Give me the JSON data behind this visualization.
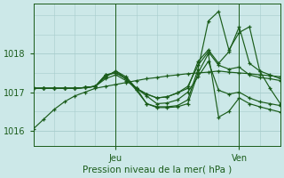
{
  "xlabel": "Pression niveau de la mer( hPa )",
  "xlim": [
    0,
    96
  ],
  "ylim": [
    1015.6,
    1019.3
  ],
  "yticks": [
    1016,
    1017,
    1018
  ],
  "xtick_positions": [
    32,
    80
  ],
  "xtick_labels": [
    "Jeu",
    "Ven"
  ],
  "bg_color": "#cce8e8",
  "line_color": "#1a5c1a",
  "grid_color": "#a8cccc",
  "figsize": [
    3.2,
    2.0
  ],
  "dpi": 100,
  "lines": [
    {
      "x": [
        0,
        4,
        8,
        12,
        16,
        20,
        24,
        28,
        32,
        36,
        40,
        44,
        48,
        52,
        56,
        60,
        64,
        68,
        72,
        76,
        80,
        84,
        88,
        92,
        96
      ],
      "y": [
        1016.05,
        1016.3,
        1016.55,
        1016.75,
        1016.9,
        1017.0,
        1017.1,
        1017.15,
        1017.2,
        1017.25,
        1017.3,
        1017.35,
        1017.38,
        1017.42,
        1017.45,
        1017.48,
        1017.5,
        1017.52,
        1017.55,
        1017.52,
        1017.5,
        1017.48,
        1017.45,
        1017.43,
        1017.4
      ]
    },
    {
      "x": [
        0,
        4,
        8,
        12,
        16,
        20,
        24,
        28,
        32,
        36,
        40,
        44,
        48,
        52,
        56,
        60,
        64,
        68,
        72,
        76,
        80,
        84,
        88,
        92,
        96
      ],
      "y": [
        1017.1,
        1017.1,
        1017.1,
        1017.1,
        1017.1,
        1017.12,
        1017.15,
        1017.35,
        1017.45,
        1017.3,
        1017.1,
        1016.9,
        1016.7,
        1016.72,
        1016.8,
        1017.0,
        1017.4,
        1017.8,
        1017.05,
        1016.95,
        1017.0,
        1016.85,
        1016.75,
        1016.7,
        1016.65
      ]
    },
    {
      "x": [
        0,
        4,
        8,
        12,
        16,
        20,
        24,
        28,
        32,
        36,
        40,
        44,
        48,
        52,
        56,
        60,
        64,
        68,
        72,
        76,
        80,
        84,
        88,
        92,
        96
      ],
      "y": [
        1017.1,
        1017.1,
        1017.1,
        1017.1,
        1017.1,
        1017.12,
        1017.15,
        1017.4,
        1017.55,
        1017.4,
        1017.1,
        1016.7,
        1016.62,
        1016.62,
        1016.65,
        1016.8,
        1017.6,
        1018.85,
        1019.1,
        1018.1,
        1018.55,
        1018.7,
        1017.55,
        1017.1,
        1016.7
      ]
    },
    {
      "x": [
        0,
        4,
        8,
        12,
        16,
        20,
        24,
        28,
        32,
        36,
        40,
        44,
        48,
        52,
        56,
        60,
        64,
        68,
        72,
        76,
        80,
        84,
        88,
        92,
        96
      ],
      "y": [
        1017.1,
        1017.1,
        1017.1,
        1017.1,
        1017.1,
        1017.12,
        1017.15,
        1017.4,
        1017.55,
        1017.35,
        1017.05,
        1016.7,
        1016.6,
        1016.6,
        1016.62,
        1016.7,
        1017.5,
        1018.0,
        1016.35,
        1016.5,
        1016.85,
        1016.7,
        1016.62,
        1016.55,
        1016.48
      ]
    },
    {
      "x": [
        0,
        4,
        8,
        12,
        16,
        20,
        24,
        28,
        32,
        36,
        40,
        44,
        48,
        52,
        56,
        60,
        64,
        68,
        72,
        76,
        80,
        84,
        88,
        92,
        96
      ],
      "y": [
        1017.1,
        1017.1,
        1017.1,
        1017.1,
        1017.1,
        1017.12,
        1017.15,
        1017.45,
        1017.5,
        1017.35,
        1017.1,
        1016.95,
        1016.85,
        1016.88,
        1016.98,
        1017.15,
        1017.7,
        1018.05,
        1017.7,
        1017.6,
        1017.65,
        1017.45,
        1017.38,
        1017.35,
        1017.3
      ]
    },
    {
      "x": [
        0,
        4,
        8,
        12,
        16,
        20,
        24,
        28,
        32,
        36,
        40,
        44,
        48,
        52,
        56,
        60,
        64,
        68,
        72,
        76,
        80,
        84,
        88,
        92,
        96
      ],
      "y": [
        1017.1,
        1017.1,
        1017.1,
        1017.1,
        1017.1,
        1017.12,
        1017.15,
        1017.45,
        1017.5,
        1017.35,
        1017.1,
        1016.95,
        1016.85,
        1016.88,
        1016.98,
        1017.1,
        1017.8,
        1018.1,
        1017.75,
        1018.05,
        1018.7,
        1017.75,
        1017.55,
        1017.45,
        1017.35
      ]
    }
  ]
}
